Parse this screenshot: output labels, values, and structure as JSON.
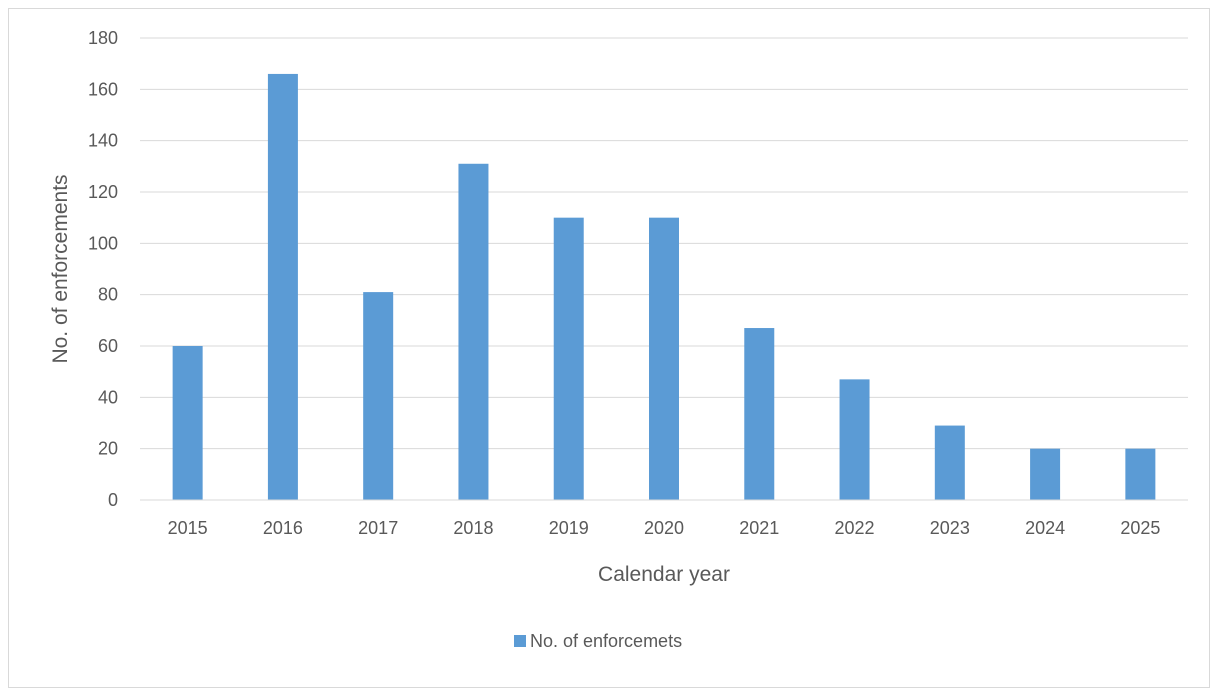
{
  "chart_data": {
    "type": "bar",
    "title": "",
    "xlabel": "Calendar year",
    "ylabel": "No. of enforcements",
    "categories": [
      "2015",
      "2016",
      "2017",
      "2018",
      "2019",
      "2020",
      "2021",
      "2022",
      "2023",
      "2024",
      "2025"
    ],
    "series": [
      {
        "name": "No. of enforcemets",
        "values": [
          60,
          166,
          81,
          131,
          110,
          110,
          67,
          47,
          29,
          20,
          20
        ],
        "color": "#5b9bd5"
      }
    ],
    "ylim": [
      0,
      180
    ],
    "yticks": [
      "0",
      "20",
      "40",
      "60",
      "80",
      "100",
      "120",
      "140",
      "160",
      "180"
    ],
    "grid": true,
    "legend_position": "bottom"
  }
}
